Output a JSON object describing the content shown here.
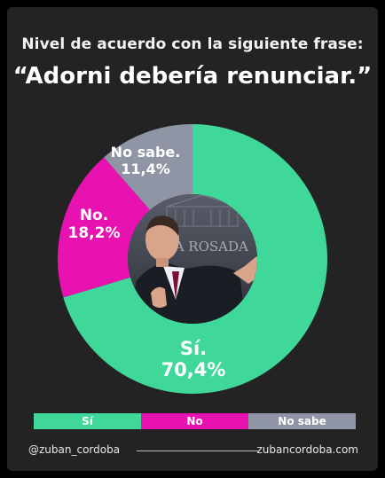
{
  "header": {
    "title": "Nivel de acuerdo con la siguiente frase:",
    "subtitle": "“Adorni debería renunciar.”"
  },
  "chart_data": {
    "type": "pie",
    "style": "donut",
    "categories": [
      "Sí",
      "No",
      "No sabe"
    ],
    "values": [
      70.4,
      18.2,
      11.4
    ],
    "unit": "%",
    "slice_labels": [
      {
        "name": "Sí.",
        "value": "70,4%"
      },
      {
        "name": "No.",
        "value": "18,2%"
      },
      {
        "name": "No sabe.",
        "value": "11,4%"
      }
    ],
    "colors": [
      "#3fd89a",
      "#e812b0",
      "#8f95a4"
    ],
    "legend": {
      "placement": "bottom",
      "entries": [
        {
          "label": "Sí",
          "color": "#3fd89a"
        },
        {
          "label": "No",
          "color": "#e812b0"
        },
        {
          "label": "No sabe",
          "color": "#8f95a4"
        }
      ]
    },
    "center_image": "photo-of-man-giving-thumbs-up-in-front-of-casa-rosada-backdrop",
    "center_image_text": "CASA ROSADA"
  },
  "footer": {
    "handle": "@zuban_cordoba",
    "website": "zubancordoba.com"
  }
}
